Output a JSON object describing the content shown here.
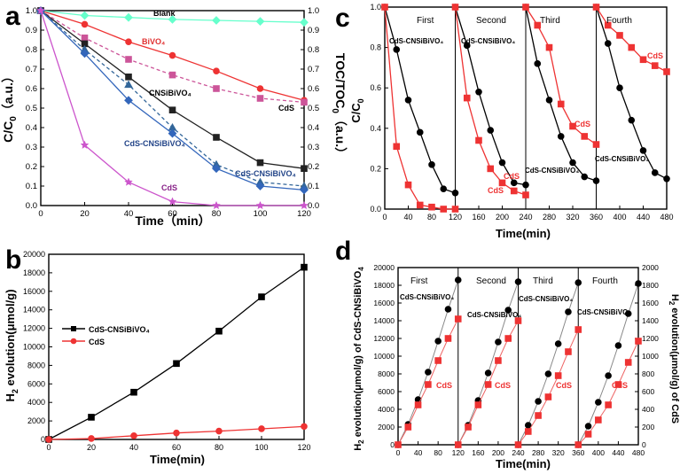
{
  "chart_data": [
    {
      "panel": "a",
      "type": "line",
      "xlabel": "Time (min)",
      "ylabel": "C/C0 (a.u.)",
      "ylabel_right": "TOC/TOC0 (a.u.)",
      "xlim": [
        0,
        120
      ],
      "ylim": [
        0,
        1.0
      ],
      "ylim_right": [
        0,
        1.0
      ],
      "xticks": [
        "0",
        "20",
        "40",
        "60",
        "80",
        "100",
        "120"
      ],
      "yticks": [
        "0.0",
        "0.1",
        "0.2",
        "0.3",
        "0.4",
        "0.5",
        "0.6",
        "0.7",
        "0.8",
        "0.9",
        "1.0"
      ],
      "yticks_right": [
        "0.0",
        "0.1",
        "0.2",
        "0.3",
        "0.4",
        "0.5",
        "0.6",
        "0.7",
        "0.8",
        "0.9",
        "1.0"
      ],
      "series": [
        {
          "name": "Blank",
          "color": "#66ffcc",
          "marker": "diamond",
          "dash": false,
          "x": [
            0,
            20,
            40,
            60,
            80,
            100,
            120
          ],
          "values": [
            1.0,
            0.975,
            0.965,
            0.955,
            0.95,
            0.945,
            0.94
          ]
        },
        {
          "name": "BiVO4",
          "color": "#ee3333",
          "marker": "circle",
          "dash": false,
          "x": [
            0,
            20,
            40,
            60,
            80,
            100,
            120
          ],
          "values": [
            1.0,
            0.93,
            0.84,
            0.77,
            0.69,
            0.6,
            0.54
          ]
        },
        {
          "name": "CdS",
          "color": "#cc5599",
          "marker": "square",
          "dash": true,
          "x": [
            0,
            20,
            40,
            60,
            80,
            100,
            120
          ],
          "values": [
            1.0,
            0.86,
            0.75,
            0.67,
            0.6,
            0.55,
            0.53
          ]
        },
        {
          "name": "CNSiBiVO4",
          "color": "#222222",
          "marker": "square",
          "dash": false,
          "x": [
            0,
            20,
            40,
            60,
            80,
            100,
            120
          ],
          "values": [
            1.0,
            0.83,
            0.66,
            0.49,
            0.35,
            0.22,
            0.19
          ]
        },
        {
          "name": "CdS-CNSiBiVO4",
          "color": "#336699",
          "marker": "triangle",
          "dash": true,
          "x": [
            0,
            20,
            40,
            60,
            80,
            100,
            120
          ],
          "values": [
            1.0,
            0.8,
            0.62,
            0.4,
            0.21,
            0.12,
            0.1
          ]
        },
        {
          "name": "CdS-CNSiBiVO4",
          "color": "#3366bb",
          "marker": "diamond",
          "dash": false,
          "x": [
            0,
            20,
            40,
            60,
            80,
            100,
            120
          ],
          "values": [
            1.0,
            0.78,
            0.54,
            0.37,
            0.19,
            0.1,
            0.08
          ]
        },
        {
          "name": "CdS",
          "color": "#cc55cc",
          "marker": "star",
          "dash": false,
          "x": [
            0,
            20,
            40,
            60,
            80,
            100,
            120
          ],
          "values": [
            1.0,
            0.31,
            0.12,
            0.02,
            0.0,
            0.0,
            0.0
          ]
        }
      ],
      "annotations": [
        "Blank",
        "BiVO₄",
        "CNSiBiVO₄",
        "CdS",
        "CdS-CNSiBiVO₄",
        "CdS-CNSiBiVO₄",
        "CdS"
      ]
    },
    {
      "panel": "b",
      "type": "line",
      "xlabel": "Time(min)",
      "ylabel": "H2 evolution(μmol/g)",
      "xlim": [
        0,
        120
      ],
      "ylim": [
        0,
        20000
      ],
      "xticks": [
        "0",
        "20",
        "40",
        "60",
        "80",
        "100",
        "120"
      ],
      "yticks": [
        "0",
        "2000",
        "4000",
        "6000",
        "8000",
        "10000",
        "12000",
        "14000",
        "16000",
        "18000",
        "20000"
      ],
      "legend_position": "middle-left",
      "series": [
        {
          "name": "CdS-CNSiBiVO₄",
          "color": "#000000",
          "marker": "square",
          "x": [
            0,
            20,
            40,
            60,
            80,
            100,
            120
          ],
          "values": [
            0,
            2400,
            5100,
            8200,
            11700,
            15400,
            18600
          ]
        },
        {
          "name": "CdS",
          "color": "#ee3333",
          "marker": "circle",
          "x": [
            0,
            20,
            40,
            60,
            80,
            100,
            120
          ],
          "values": [
            0,
            100,
            400,
            700,
            900,
            1150,
            1400
          ]
        }
      ]
    },
    {
      "panel": "c",
      "type": "line",
      "xlabel": "Time(min)",
      "ylabel": "C/C0",
      "xlim": [
        0,
        480
      ],
      "ylim": [
        0,
        1.0
      ],
      "xticks": [
        "0",
        "40",
        "80",
        "120",
        "160",
        "200",
        "240",
        "280",
        "320",
        "360",
        "400",
        "440",
        "480"
      ],
      "yticks": [
        "0.0",
        "0.2",
        "0.4",
        "0.6",
        "0.8",
        "1.0"
      ],
      "cycle_labels": [
        "First",
        "Second",
        "Third",
        "Fourth"
      ],
      "series": [
        {
          "name": "CdS-CNSiBiVO₄",
          "color": "#000000",
          "marker": "circle",
          "cycles": [
            {
              "x": [
                0,
                20,
                40,
                60,
                80,
                100,
                120
              ],
              "values": [
                1.0,
                0.79,
                0.54,
                0.38,
                0.22,
                0.1,
                0.08
              ]
            },
            {
              "x": [
                120,
                140,
                160,
                180,
                200,
                220,
                240
              ],
              "values": [
                1.0,
                0.81,
                0.58,
                0.39,
                0.23,
                0.13,
                0.12
              ]
            },
            {
              "x": [
                240,
                260,
                280,
                300,
                320,
                340,
                360
              ],
              "values": [
                1.0,
                0.72,
                0.54,
                0.36,
                0.23,
                0.16,
                0.14
              ]
            },
            {
              "x": [
                360,
                380,
                400,
                420,
                440,
                460,
                480
              ],
              "values": [
                1.0,
                0.82,
                0.6,
                0.44,
                0.29,
                0.18,
                0.15
              ]
            }
          ]
        },
        {
          "name": "CdS",
          "color": "#ee3333",
          "marker": "square",
          "cycles": [
            {
              "x": [
                0,
                20,
                40,
                60,
                80,
                100,
                120
              ],
              "values": [
                1.0,
                0.31,
                0.12,
                0.02,
                0.01,
                0.0,
                0.0
              ]
            },
            {
              "x": [
                120,
                140,
                160,
                180,
                200,
                220,
                240
              ],
              "values": [
                1.0,
                0.55,
                0.34,
                0.2,
                0.13,
                0.09,
                0.07
              ]
            },
            {
              "x": [
                240,
                260,
                280,
                300,
                320,
                340,
                360
              ],
              "values": [
                1.0,
                0.91,
                0.8,
                0.52,
                0.41,
                0.36,
                0.32
              ]
            },
            {
              "x": [
                360,
                380,
                400,
                420,
                440,
                460,
                480
              ],
              "values": [
                1.0,
                0.91,
                0.86,
                0.8,
                0.74,
                0.71,
                0.68
              ]
            }
          ]
        }
      ],
      "annotations": [
        "CdS-CNSiBiVO₄",
        "CdS-CNSiBiVO₄",
        "CdS",
        "CdS",
        "CdS-CNSiBiVO₄",
        "CdS",
        "CdS-CNSiBiVO₄",
        "CdS"
      ]
    },
    {
      "panel": "d",
      "type": "line",
      "xlabel": "Time(min)",
      "ylabel": "H2 evolution(μmol/g) of CdS-CNSiBiVO4",
      "ylabel_right": "H2 evolution(μmol/g) of CdS",
      "xlim": [
        0,
        480
      ],
      "ylim": [
        0,
        20000
      ],
      "ylim_right": [
        0,
        2000
      ],
      "xticks": [
        "0",
        "40",
        "80",
        "120",
        "160",
        "200",
        "240",
        "280",
        "320",
        "360",
        "400",
        "440",
        "480"
      ],
      "yticks": [
        "0",
        "2000",
        "4000",
        "6000",
        "8000",
        "10000",
        "12000",
        "14000",
        "16000",
        "18000",
        "20000"
      ],
      "yticks_right": [
        "0",
        "200",
        "400",
        "600",
        "800",
        "1000",
        "1200",
        "1400",
        "1600",
        "1800",
        "2000"
      ],
      "cycle_labels": [
        "First",
        "Second",
        "Third",
        "Fourth"
      ],
      "series": [
        {
          "name": "CdS-CNSiBiVO₄",
          "color": "#000000",
          "marker": "circle",
          "axis": "left",
          "cycles": [
            {
              "x": [
                0,
                20,
                40,
                60,
                80,
                100,
                120
              ],
              "values": [
                0,
                2300,
                5100,
                8200,
                11700,
                15300,
                18600
              ]
            },
            {
              "x": [
                120,
                140,
                160,
                180,
                200,
                220,
                240
              ],
              "values": [
                0,
                2200,
                5000,
                8100,
                11600,
                15200,
                18400
              ]
            },
            {
              "x": [
                240,
                260,
                280,
                300,
                320,
                340,
                360
              ],
              "values": [
                0,
                2200,
                4900,
                8000,
                11400,
                15000,
                18300
              ]
            },
            {
              "x": [
                360,
                380,
                400,
                420,
                440,
                460,
                480
              ],
              "values": [
                0,
                2100,
                4800,
                7800,
                11200,
                14800,
                18200
              ]
            }
          ]
        },
        {
          "name": "CdS",
          "color": "#ee3333",
          "marker": "square",
          "axis": "right",
          "cycles": [
            {
              "x": [
                0,
                20,
                40,
                60,
                80,
                100,
                120
              ],
              "values": [
                0,
                200,
                450,
                680,
                950,
                1200,
                1420
              ]
            },
            {
              "x": [
                120,
                140,
                160,
                180,
                200,
                220,
                240
              ],
              "values": [
                0,
                200,
                450,
                680,
                950,
                1200,
                1400
              ]
            },
            {
              "x": [
                240,
                260,
                280,
                300,
                320,
                340,
                360
              ],
              "values": [
                0,
                150,
                330,
                540,
                780,
                1050,
                1300
              ]
            },
            {
              "x": [
                360,
                380,
                400,
                420,
                440,
                460,
                480
              ],
              "values": [
                0,
                120,
                280,
                450,
                680,
                930,
                1170
              ]
            }
          ]
        }
      ],
      "annotations": [
        "CdS-CNSiBiVO₄",
        "CdS",
        "CdS-CNSiBiVO₄",
        "CdS",
        "CdS-CNSiBiVO₄",
        "CdS-CNSiBiVO₄",
        "CdS",
        "CdS"
      ]
    }
  ],
  "labels": {
    "panel_a": "a",
    "panel_b": "b",
    "panel_c": "c",
    "panel_d": "d",
    "a_xlabel": "Time（min）",
    "a_ylabel_left": "C/C",
    "a_ylabel_left_sub": "0",
    "a_ylabel_left_tail": "（a.u.）",
    "a_ylabel_right": "TOC/TOC",
    "a_ylabel_right_sub": "0",
    "a_ylabel_right_tail": "（a.u.）",
    "a_blank": "Blank",
    "a_bivo4": "BiVO₄",
    "a_cnsi": "CNSiBiVO₄",
    "a_cds_dash": "CdS",
    "a_cds_cns_1": "CdS-CNSiBiVO₄",
    "a_cds_cns_2": "CdS-CNSiBiVO₄",
    "a_cds": "CdS",
    "b_xlabel": "Time(min)",
    "b_ylabel_pre": "H",
    "b_ylabel_sub": "2",
    "b_ylabel_post": " evolution(μmol/g)",
    "b_legend_1": "CdS-CNSiBiVO₄",
    "b_legend_2": "CdS",
    "c_xlabel": "Time(min)",
    "c_ylabel": "C/C",
    "c_ylabel_sub": "0",
    "c_first": "First",
    "c_second": "Second",
    "c_third": "Third",
    "c_fourth": "Fourth",
    "c_ann_cns_1": "CdS-CNSiBiVO₄",
    "c_ann_cns_2": "CdS-CNSiBiVO₄",
    "c_ann_cds_2": "CdS",
    "c_ann_cds_2b": "CdS",
    "c_ann_cns_3": "CdS-CNSiBiVO₄",
    "c_ann_cds_3": "CdS",
    "c_ann_cns_4": "CdS-CNSiBiVO₄",
    "c_ann_cds_4": "CdS",
    "d_xlabel": "Time(min)",
    "d_ylabel_left_pre": "H",
    "d_ylabel_left_sub": "2",
    "d_ylabel_left_post": " evolution(μmol/g) of CdS-CNSiBiVO",
    "d_ylabel_left_sub2": "4",
    "d_ylabel_right_pre": "H",
    "d_ylabel_right_sub": "2",
    "d_ylabel_right_post": " evolution(μmol/g) of CdS",
    "d_first": "First",
    "d_second": "Second",
    "d_third": "Third",
    "d_fourth": "Fourth",
    "d_ann_cns_1": "CdS-CNSiBiVO₄",
    "d_ann_cds_1": "CdS",
    "d_ann_cns_2": "CdS-CNSiBiVO₄",
    "d_ann_cds_2": "CdS",
    "d_ann_cns_3": "CdS-CNSiBiVO₄",
    "d_ann_cns_4": "CdS-CNSiBiVO₄",
    "d_ann_cds_3": "CdS",
    "d_ann_cds_4": "CdS"
  }
}
